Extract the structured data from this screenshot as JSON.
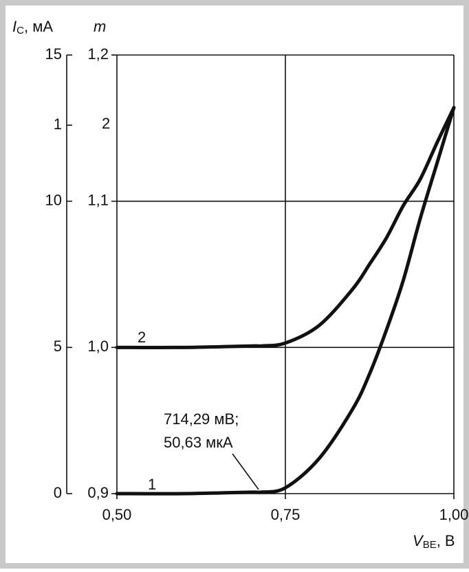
{
  "chart_data": {
    "type": "line",
    "ylabel": [
      "I",
      "C",
      ", мА"
    ],
    "y2label": "m",
    "xlabel": [
      "V",
      "BE",
      ", В"
    ],
    "x": [
      0.5,
      0.6,
      0.7,
      0.714,
      0.75,
      0.8,
      0.85,
      0.875,
      0.9,
      0.925,
      0.95,
      0.975,
      1.0
    ],
    "series": [
      {
        "name": "1",
        "color": "#111111",
        "axis": "y",
        "values": [
          0,
          0,
          0.05,
          0.05,
          0.2,
          1.2,
          2.9,
          4.1,
          5.6,
          7.3,
          9.4,
          11.3,
          13.2
        ]
      },
      {
        "name": "2",
        "color": "#111111",
        "axis": "y2",
        "values": [
          1.0,
          1.0,
          1.001,
          1.001,
          1.003,
          1.015,
          1.04,
          1.057,
          1.075,
          1.097,
          1.115,
          1.14,
          1.164
        ]
      }
    ],
    "xlim": [
      0.5,
      1.0
    ],
    "xticks": [
      {
        "value": 0.5,
        "label": "0,50"
      },
      {
        "value": 0.75,
        "label": "0,75"
      },
      {
        "value": 1.0,
        "label": "1,00"
      }
    ],
    "ylim": [
      0,
      15
    ],
    "yticks": [
      0,
      5,
      10,
      {
        "value": 12.6,
        "label": "1"
      },
      15
    ],
    "y2lim": [
      0.9,
      1.2
    ],
    "y2ticks": [
      {
        "value": 0.9,
        "label": "0,9"
      },
      {
        "value": 1.0,
        "label": "1,0"
      },
      {
        "value": 1.1,
        "label": "1,1"
      },
      {
        "value": 1.2,
        "label": "1,2"
      }
    ],
    "grid": true,
    "annotations": [
      "714,29 мВ;",
      "50,63 мкА",
      "2"
    ]
  }
}
